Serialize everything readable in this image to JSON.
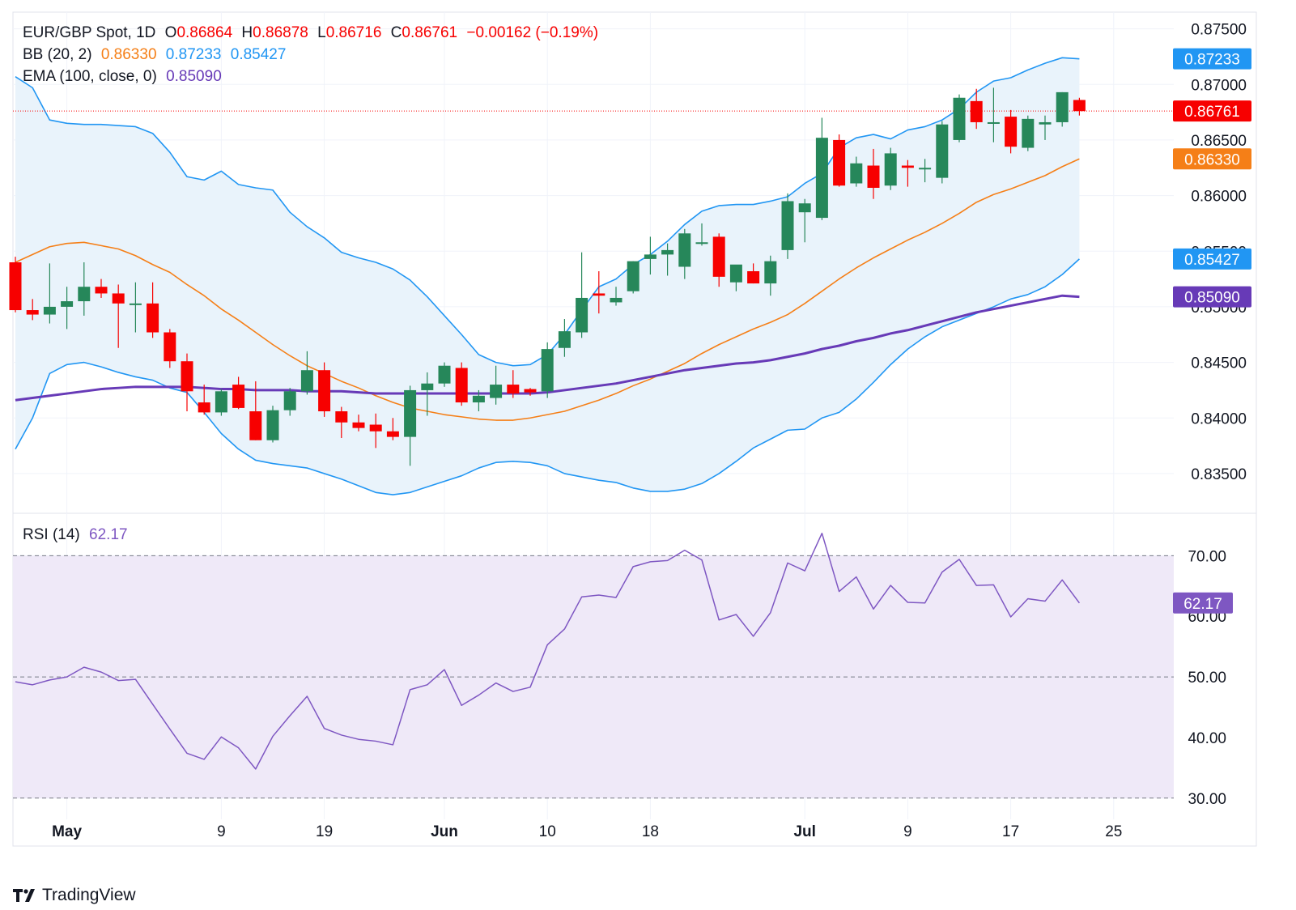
{
  "header": {
    "symbol": "EUR/GBP Spot, 1D",
    "o_label": "O",
    "o_value": "0.86864",
    "h_label": "H",
    "h_value": "0.86878",
    "l_label": "L",
    "l_value": "0.86716",
    "c_label": "C",
    "c_value": "0.86761",
    "change": "−0.00162 (−0.19%)",
    "bb_label": "BB (20, 2)",
    "bb_mid": "0.86330",
    "bb_upper": "0.87233",
    "bb_lower": "0.85427",
    "ema_label": "EMA (100, close, 0)",
    "ema_value": "0.85090",
    "rsi_label": "RSI (14)",
    "rsi_value": "62.17"
  },
  "brand": {
    "name": "TradingView"
  },
  "colors": {
    "up": "#26875a",
    "down": "#f70000",
    "bb_band": "#2196f3",
    "bb_basis": "#f57f17",
    "ema": "#673ab7",
    "rsi": "#7e57c2",
    "price_line": "#f70000",
    "fill_bb": "#e9f3fb",
    "fill_rsi": "#efe9f8"
  },
  "chart_data": [
    {
      "type": "candlestick",
      "ylim": [
        0.8315,
        0.8765
      ],
      "yticks": [
        "0.87500",
        "0.87000",
        "0.86500",
        "0.86000",
        "0.85500",
        "0.85000",
        "0.84500",
        "0.84000",
        "0.83500"
      ],
      "ytick_values": [
        0.875,
        0.87,
        0.865,
        0.86,
        0.855,
        0.85,
        0.845,
        0.84,
        0.835
      ],
      "xtick_labels": [
        "May",
        "9",
        "19",
        "Jun",
        "10",
        "18",
        "Jul",
        "9",
        "17",
        "25"
      ],
      "xtick_index": [
        3,
        12,
        18,
        25,
        31,
        37,
        46,
        52,
        58,
        64
      ],
      "candles": [
        {
          "o": 0.854,
          "h": 0.8545,
          "l": 0.8495,
          "c": 0.8497
        },
        {
          "o": 0.8497,
          "h": 0.8507,
          "l": 0.8488,
          "c": 0.8493
        },
        {
          "o": 0.8493,
          "h": 0.8539,
          "l": 0.8485,
          "c": 0.85
        },
        {
          "o": 0.85,
          "h": 0.8518,
          "l": 0.848,
          "c": 0.8505
        },
        {
          "o": 0.8505,
          "h": 0.854,
          "l": 0.8492,
          "c": 0.8518
        },
        {
          "o": 0.8518,
          "h": 0.8525,
          "l": 0.8508,
          "c": 0.8512
        },
        {
          "o": 0.8512,
          "h": 0.852,
          "l": 0.8463,
          "c": 0.8503
        },
        {
          "o": 0.8503,
          "h": 0.8522,
          "l": 0.8477,
          "c": 0.8503
        },
        {
          "o": 0.8503,
          "h": 0.8522,
          "l": 0.8472,
          "c": 0.8477
        },
        {
          "o": 0.8477,
          "h": 0.848,
          "l": 0.8445,
          "c": 0.8451
        },
        {
          "o": 0.8451,
          "h": 0.8458,
          "l": 0.8406,
          "c": 0.8424
        },
        {
          "o": 0.8414,
          "h": 0.843,
          "l": 0.8403,
          "c": 0.8405
        },
        {
          "o": 0.8405,
          "h": 0.8426,
          "l": 0.8402,
          "c": 0.8424
        },
        {
          "o": 0.843,
          "h": 0.8437,
          "l": 0.8408,
          "c": 0.8409
        },
        {
          "o": 0.8406,
          "h": 0.8433,
          "l": 0.838,
          "c": 0.838
        },
        {
          "o": 0.838,
          "h": 0.8411,
          "l": 0.8378,
          "c": 0.8407
        },
        {
          "o": 0.8407,
          "h": 0.8427,
          "l": 0.8402,
          "c": 0.8424
        },
        {
          "o": 0.8424,
          "h": 0.846,
          "l": 0.8421,
          "c": 0.8443
        },
        {
          "o": 0.8443,
          "h": 0.845,
          "l": 0.8401,
          "c": 0.8406
        },
        {
          "o": 0.8406,
          "h": 0.841,
          "l": 0.8382,
          "c": 0.8396
        },
        {
          "o": 0.8396,
          "h": 0.8403,
          "l": 0.8388,
          "c": 0.8391
        },
        {
          "o": 0.8394,
          "h": 0.8404,
          "l": 0.8373,
          "c": 0.8388
        },
        {
          "o": 0.8388,
          "h": 0.84,
          "l": 0.838,
          "c": 0.8383
        },
        {
          "o": 0.8383,
          "h": 0.8429,
          "l": 0.8357,
          "c": 0.8425
        },
        {
          "o": 0.8425,
          "h": 0.8441,
          "l": 0.8402,
          "c": 0.8431
        },
        {
          "o": 0.8431,
          "h": 0.845,
          "l": 0.8428,
          "c": 0.8447
        },
        {
          "o": 0.8445,
          "h": 0.845,
          "l": 0.8411,
          "c": 0.8414
        },
        {
          "o": 0.8414,
          "h": 0.8425,
          "l": 0.8406,
          "c": 0.842
        },
        {
          "o": 0.8418,
          "h": 0.8447,
          "l": 0.8412,
          "c": 0.843
        },
        {
          "o": 0.843,
          "h": 0.8443,
          "l": 0.8418,
          "c": 0.8422
        },
        {
          "o": 0.8426,
          "h": 0.8427,
          "l": 0.842,
          "c": 0.8423
        },
        {
          "o": 0.8424,
          "h": 0.8468,
          "l": 0.8418,
          "c": 0.8462
        },
        {
          "o": 0.8463,
          "h": 0.8489,
          "l": 0.8455,
          "c": 0.8478
        },
        {
          "o": 0.8477,
          "h": 0.8549,
          "l": 0.8472,
          "c": 0.8508
        },
        {
          "o": 0.8512,
          "h": 0.8532,
          "l": 0.8494,
          "c": 0.851
        },
        {
          "o": 0.8504,
          "h": 0.8518,
          "l": 0.8501,
          "c": 0.8508
        },
        {
          "o": 0.8514,
          "h": 0.8541,
          "l": 0.8512,
          "c": 0.8541
        },
        {
          "o": 0.8543,
          "h": 0.8563,
          "l": 0.8529,
          "c": 0.8547
        },
        {
          "o": 0.8547,
          "h": 0.8557,
          "l": 0.8528,
          "c": 0.8551
        },
        {
          "o": 0.8536,
          "h": 0.857,
          "l": 0.8525,
          "c": 0.8566
        },
        {
          "o": 0.8558,
          "h": 0.8575,
          "l": 0.8555,
          "c": 0.8558
        },
        {
          "o": 0.8563,
          "h": 0.8566,
          "l": 0.8518,
          "c": 0.8527
        },
        {
          "o": 0.8522,
          "h": 0.8537,
          "l": 0.8514,
          "c": 0.8538
        },
        {
          "o": 0.8532,
          "h": 0.8539,
          "l": 0.8521,
          "c": 0.8521
        },
        {
          "o": 0.8521,
          "h": 0.8546,
          "l": 0.851,
          "c": 0.8541
        },
        {
          "o": 0.8551,
          "h": 0.8602,
          "l": 0.8543,
          "c": 0.8595
        },
        {
          "o": 0.8585,
          "h": 0.8597,
          "l": 0.8558,
          "c": 0.8593
        },
        {
          "o": 0.858,
          "h": 0.867,
          "l": 0.8578,
          "c": 0.8652
        },
        {
          "o": 0.865,
          "h": 0.8655,
          "l": 0.8608,
          "c": 0.8609
        },
        {
          "o": 0.8611,
          "h": 0.8635,
          "l": 0.8608,
          "c": 0.8629
        },
        {
          "o": 0.8627,
          "h": 0.8642,
          "l": 0.8597,
          "c": 0.8607
        },
        {
          "o": 0.8609,
          "h": 0.8643,
          "l": 0.8605,
          "c": 0.8638
        },
        {
          "o": 0.8627,
          "h": 0.8632,
          "l": 0.8608,
          "c": 0.8625
        },
        {
          "o": 0.8624,
          "h": 0.8633,
          "l": 0.8612,
          "c": 0.8625
        },
        {
          "o": 0.8616,
          "h": 0.8667,
          "l": 0.8611,
          "c": 0.8664
        },
        {
          "o": 0.865,
          "h": 0.8691,
          "l": 0.8648,
          "c": 0.8688
        },
        {
          "o": 0.8685,
          "h": 0.8696,
          "l": 0.866,
          "c": 0.8666
        },
        {
          "o": 0.8666,
          "h": 0.8697,
          "l": 0.8648,
          "c": 0.8666
        },
        {
          "o": 0.8671,
          "h": 0.8677,
          "l": 0.8638,
          "c": 0.8644
        },
        {
          "o": 0.8643,
          "h": 0.8672,
          "l": 0.864,
          "c": 0.8669
        },
        {
          "o": 0.8664,
          "h": 0.8672,
          "l": 0.865,
          "c": 0.8666
        },
        {
          "o": 0.8666,
          "h": 0.8693,
          "l": 0.8662,
          "c": 0.8693
        },
        {
          "o": 0.8686,
          "h": 0.8688,
          "l": 0.8672,
          "c": 0.8676
        }
      ],
      "bb_upper": [
        0.8707,
        0.8697,
        0.8668,
        0.8665,
        0.8664,
        0.8664,
        0.8663,
        0.8662,
        0.8656,
        0.8639,
        0.8617,
        0.8614,
        0.8622,
        0.861,
        0.8607,
        0.8605,
        0.8585,
        0.8572,
        0.8562,
        0.8549,
        0.8544,
        0.854,
        0.8534,
        0.8524,
        0.8509,
        0.8492,
        0.8475,
        0.8457,
        0.845,
        0.8447,
        0.8448,
        0.8457,
        0.8475,
        0.8497,
        0.8518,
        0.8525,
        0.8538,
        0.8547,
        0.8559,
        0.8574,
        0.8586,
        0.8591,
        0.8592,
        0.8592,
        0.8595,
        0.8599,
        0.8611,
        0.862,
        0.8643,
        0.8652,
        0.8655,
        0.8651,
        0.8659,
        0.8662,
        0.8668,
        0.8678,
        0.8693,
        0.8703,
        0.8706,
        0.8713,
        0.8719,
        0.8724,
        0.8723
      ],
      "bb_basis": [
        0.854,
        0.8547,
        0.8554,
        0.8557,
        0.8558,
        0.8555,
        0.8552,
        0.8546,
        0.8538,
        0.8531,
        0.852,
        0.851,
        0.8498,
        0.8488,
        0.8477,
        0.8466,
        0.8456,
        0.8447,
        0.844,
        0.8433,
        0.8427,
        0.842,
        0.8414,
        0.8409,
        0.8406,
        0.8403,
        0.8401,
        0.8399,
        0.8398,
        0.8398,
        0.84,
        0.8403,
        0.8406,
        0.8411,
        0.8416,
        0.8422,
        0.8429,
        0.8435,
        0.8442,
        0.8449,
        0.8458,
        0.8466,
        0.8473,
        0.848,
        0.8486,
        0.8493,
        0.8503,
        0.8514,
        0.8525,
        0.8535,
        0.8544,
        0.8552,
        0.856,
        0.8567,
        0.8575,
        0.8584,
        0.8594,
        0.8601,
        0.8606,
        0.8612,
        0.8618,
        0.8626,
        0.8633
      ],
      "bb_lower": [
        0.8372,
        0.84,
        0.844,
        0.8448,
        0.845,
        0.8446,
        0.8441,
        0.8437,
        0.8434,
        0.8427,
        0.8423,
        0.8405,
        0.8386,
        0.8372,
        0.8362,
        0.8359,
        0.8357,
        0.8355,
        0.835,
        0.8345,
        0.8339,
        0.8333,
        0.8331,
        0.8333,
        0.8338,
        0.8343,
        0.8348,
        0.8355,
        0.836,
        0.8361,
        0.836,
        0.8357,
        0.835,
        0.8347,
        0.8344,
        0.8342,
        0.8337,
        0.8334,
        0.8334,
        0.8336,
        0.8341,
        0.835,
        0.8361,
        0.8373,
        0.8381,
        0.8389,
        0.839,
        0.84,
        0.8405,
        0.8417,
        0.8432,
        0.8448,
        0.8462,
        0.8473,
        0.8482,
        0.8488,
        0.8494,
        0.85,
        0.8507,
        0.8511,
        0.8518,
        0.8529,
        0.8543
      ],
      "ema": [
        0.8416,
        0.8418,
        0.842,
        0.8422,
        0.8424,
        0.8426,
        0.8427,
        0.8428,
        0.8428,
        0.8428,
        0.8428,
        0.8427,
        0.8426,
        0.8426,
        0.8425,
        0.8425,
        0.8425,
        0.8424,
        0.8424,
        0.8424,
        0.8423,
        0.8422,
        0.8422,
        0.8422,
        0.8422,
        0.8422,
        0.8422,
        0.8422,
        0.8422,
        0.8422,
        0.8422,
        0.8423,
        0.8425,
        0.8427,
        0.8429,
        0.8431,
        0.8434,
        0.8437,
        0.844,
        0.8443,
        0.8445,
        0.8447,
        0.8449,
        0.845,
        0.8452,
        0.8455,
        0.8458,
        0.8462,
        0.8465,
        0.8469,
        0.8472,
        0.8476,
        0.8479,
        0.8483,
        0.8487,
        0.8491,
        0.8495,
        0.8498,
        0.8501,
        0.8504,
        0.8507,
        0.851,
        0.8509
      ],
      "last_price": 0.86761
    },
    {
      "type": "line",
      "name": "RSI (14)",
      "ylim": [
        26.5,
        77
      ],
      "yticks": [
        "70.00",
        "60.00",
        "50.00",
        "40.00",
        "30.00"
      ],
      "ytick_values": [
        70,
        60,
        50,
        40,
        30
      ],
      "levels": [
        70,
        50,
        30
      ],
      "values": [
        49.2,
        48.7,
        49.5,
        50.0,
        51.6,
        50.8,
        49.4,
        49.6,
        45.5,
        41.4,
        37.4,
        36.4,
        40.1,
        38.3,
        34.8,
        40.2,
        43.6,
        46.8,
        41.5,
        40.4,
        39.7,
        39.4,
        38.8,
        47.9,
        48.7,
        51.2,
        45.3,
        47.0,
        49.0,
        47.6,
        48.3,
        55.3,
        57.9,
        63.2,
        63.5,
        63.1,
        68.2,
        69.0,
        69.2,
        70.9,
        69.3,
        59.4,
        60.3,
        56.7,
        60.6,
        68.8,
        67.5,
        73.7,
        64.1,
        66.5,
        61.2,
        65.1,
        62.3,
        62.2,
        67.3,
        69.4,
        65.1,
        65.2,
        59.9,
        62.9,
        62.5,
        66.0,
        62.2
      ]
    }
  ]
}
